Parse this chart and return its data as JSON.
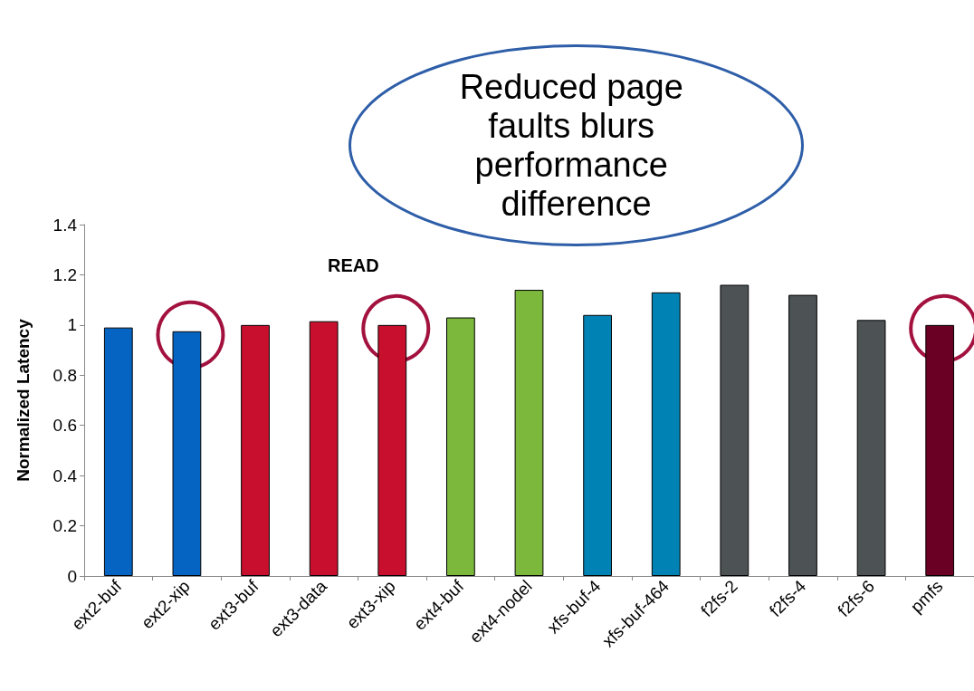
{
  "chart_data": {
    "type": "bar",
    "title": "READ",
    "ylabel": "Normalized Latency",
    "categories": [
      "ext2-buf",
      "ext2-xip",
      "ext3-buf",
      "ext3-data",
      "ext3-xip",
      "ext4-buf",
      "ext4-nodel",
      "xfs-buf-4",
      "xfs-buf-464",
      "f2fs-2",
      "f2fs-4",
      "f2fs-6",
      "pmfs"
    ],
    "values": [
      0.99,
      0.975,
      1.0,
      1.015,
      1.0,
      1.03,
      1.14,
      1.04,
      1.13,
      1.16,
      1.12,
      1.02,
      1.0
    ],
    "colors": [
      "#0563c1",
      "#0563c1",
      "#c8102e",
      "#c8102e",
      "#c8102e",
      "#7cb83c",
      "#7cb83c",
      "#0083b4",
      "#0083b4",
      "#4d5254",
      "#4d5254",
      "#4d5254",
      "#6a0024"
    ],
    "ylim": [
      0,
      1.4
    ],
    "yticks": [
      0,
      0.2,
      0.4,
      0.6,
      0.8,
      1,
      1.2,
      1.4
    ],
    "annotations": [
      "Reduced page faults blurs performance difference"
    ],
    "grid": false
  }
}
